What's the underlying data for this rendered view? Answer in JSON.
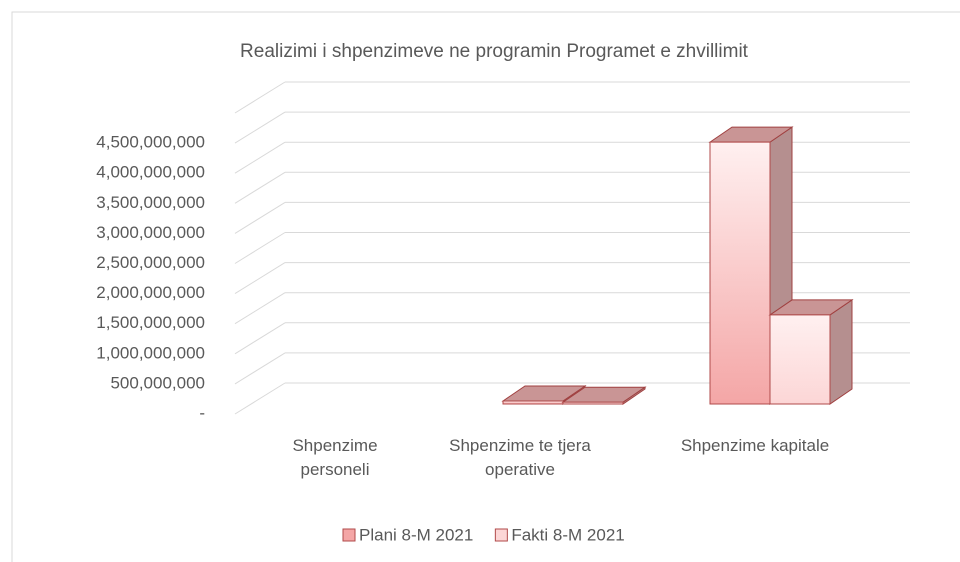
{
  "chart_data": {
    "type": "bar3d",
    "title": "Realizimi i shpenzimeve  ne programin Programet e zhvillimit",
    "categories": [
      "Shpenzime personeli",
      "Shpenzime te tjera operative",
      "Shpenzime kapitale"
    ],
    "series": [
      {
        "name": "Plani 8-M 2021",
        "color": "#f4a6a6",
        "values": [
          0,
          50000000,
          4350000000
        ]
      },
      {
        "name": "Fakti 8-M  2021",
        "color": "#fcd6d6",
        "values": [
          0,
          30000000,
          1480000000
        ]
      }
    ],
    "ylim": [
      0,
      5000000000
    ],
    "yticks": [
      {
        "value": 0,
        "label": "-"
      },
      {
        "value": 500000000,
        "label": "500,000,000"
      },
      {
        "value": 1000000000,
        "label": "1,000,000,000"
      },
      {
        "value": 1500000000,
        "label": "1,500,000,000"
      },
      {
        "value": 2000000000,
        "label": "2,000,000,000"
      },
      {
        "value": 2500000000,
        "label": "2,500,000,000"
      },
      {
        "value": 3000000000,
        "label": "3,000,000,000"
      },
      {
        "value": 3500000000,
        "label": "3,500,000,000"
      },
      {
        "value": 4000000000,
        "label": "4,000,000,000"
      },
      {
        "value": 4500000000,
        "label": "4,500,000,000"
      }
    ],
    "grid": true
  }
}
